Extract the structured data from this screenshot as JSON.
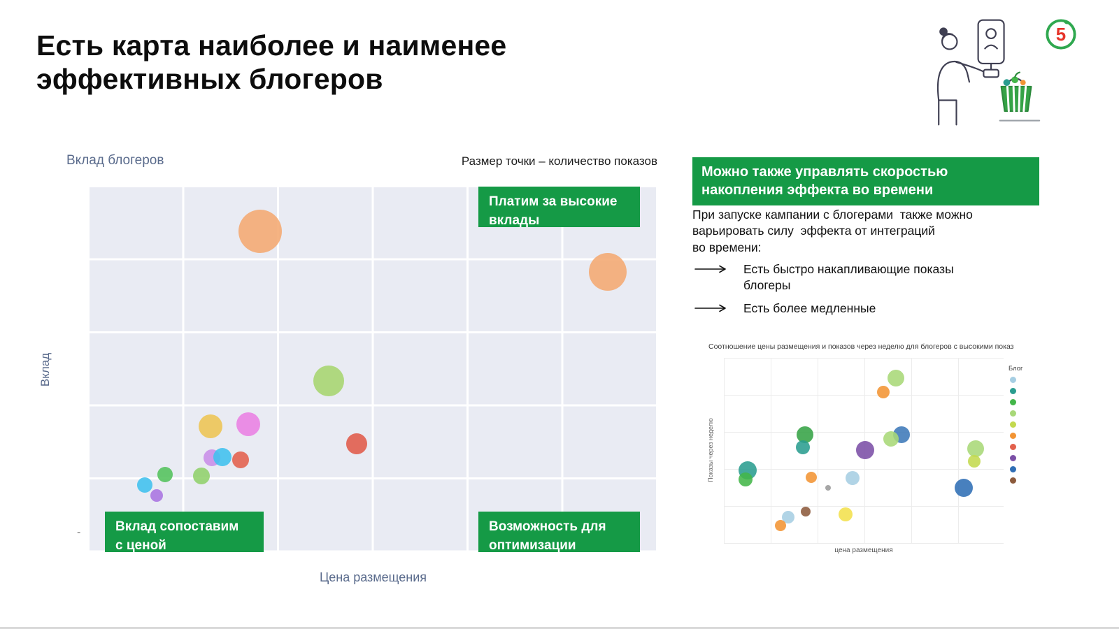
{
  "colors": {
    "accent_green": "#159A46",
    "plot_background": "#E9EBF3",
    "axis_label": "#5A6B8C",
    "logo_red": "#E63329",
    "logo_green": "#2FA84F"
  },
  "page": {
    "title": "Есть карта наиболее и наименее\nэффективных блогеров",
    "logo_text": "5"
  },
  "side_panel": {
    "header": "Можно также управлять скоростью\nнакопления эффекта во времени",
    "paragraph": "При запуске кампании с блогерами  также можно\nварьировать силу  эффекта от интеграций\nво времени:",
    "bullets": [
      "Есть быстро накапливающие показы\nблогеры",
      "Есть более медленные"
    ]
  },
  "chart_data": [
    {
      "type": "scatter",
      "title": "Вклад блогеров",
      "size_note": "Размер точки – количество показов",
      "xlabel": "Цена размещения",
      "ylabel": "Вклад",
      "ytick": "-",
      "grid": true,
      "coord_note": "x,y in percent of plot area, y from top; r = bubble radius px; axes unlabeled/qualitative",
      "annotations": {
        "top_right": "Платим за высокие\nвклады",
        "bottom_left": "Вклад сопоставим\nс ценой",
        "bottom_right": "Возможность для\nоптимизации"
      },
      "points": [
        {
          "x": 30.1,
          "y": 12.3,
          "r": 31,
          "color": "#F4A971"
        },
        {
          "x": 91.3,
          "y": 23.4,
          "r": 27,
          "color": "#F4A971"
        },
        {
          "x": 42.2,
          "y": 53.3,
          "r": 22,
          "color": "#A6D56E"
        },
        {
          "x": 21.4,
          "y": 65.7,
          "r": 17,
          "color": "#EDC452"
        },
        {
          "x": 28.0,
          "y": 65.1,
          "r": 17,
          "color": "#E980E3"
        },
        {
          "x": 47.1,
          "y": 70.5,
          "r": 15,
          "color": "#E05A49"
        },
        {
          "x": 21.6,
          "y": 74.3,
          "r": 12,
          "color": "#C88DE8"
        },
        {
          "x": 23.5,
          "y": 74.2,
          "r": 13,
          "color": "#3FC0EE"
        },
        {
          "x": 26.7,
          "y": 74.9,
          "r": 12,
          "color": "#E2604C"
        },
        {
          "x": 13.4,
          "y": 79.0,
          "r": 11,
          "color": "#52C25B"
        },
        {
          "x": 19.8,
          "y": 79.3,
          "r": 12,
          "color": "#8FD06A"
        },
        {
          "x": 9.8,
          "y": 81.8,
          "r": 11,
          "color": "#3FC0EE"
        },
        {
          "x": 11.9,
          "y": 84.7,
          "r": 9,
          "color": "#A873E0"
        }
      ]
    },
    {
      "type": "scatter",
      "title": "Соотношение цены размещения и показов через неделю для блогеров с высокими показ",
      "xlabel": "цена размещения",
      "ylabel": "Показы через неделю",
      "legend_label": "Блог",
      "grid": true,
      "coord_note": "x,y in percent of plot area, y from top; r = bubble radius px",
      "legend_colors": [
        "#A6CEE3",
        "#2A9D8F",
        "#43B649",
        "#A8D878",
        "#C3D94E",
        "#F29433",
        "#E2604C",
        "#7B4FA6",
        "#2F6EB5",
        "#8C5A3C"
      ],
      "points": [
        {
          "x": 61.4,
          "y": 11.0,
          "r": 12,
          "color": "#A8D878"
        },
        {
          "x": 57.0,
          "y": 18.5,
          "r": 9,
          "color": "#F29433"
        },
        {
          "x": 28.9,
          "y": 41.4,
          "r": 12,
          "color": "#35A346"
        },
        {
          "x": 28.2,
          "y": 48.0,
          "r": 10,
          "color": "#2A9D8F"
        },
        {
          "x": 63.4,
          "y": 41.4,
          "r": 12,
          "color": "#3E79B8"
        },
        {
          "x": 59.8,
          "y": 43.6,
          "r": 11,
          "color": "#A8D878"
        },
        {
          "x": 50.6,
          "y": 49.5,
          "r": 13,
          "color": "#7B4FA6"
        },
        {
          "x": 89.9,
          "y": 48.7,
          "r": 12,
          "color": "#A8D878"
        },
        {
          "x": 89.4,
          "y": 55.7,
          "r": 9,
          "color": "#C3D94E"
        },
        {
          "x": 8.4,
          "y": 60.4,
          "r": 13,
          "color": "#2A9D8F"
        },
        {
          "x": 7.7,
          "y": 65.6,
          "r": 10,
          "color": "#43B649"
        },
        {
          "x": 31.3,
          "y": 64.1,
          "r": 8,
          "color": "#F29433"
        },
        {
          "x": 46.0,
          "y": 64.5,
          "r": 10,
          "color": "#A6CEE3"
        },
        {
          "x": 37.3,
          "y": 70.0,
          "r": 4,
          "color": "#9A9A9A"
        },
        {
          "x": 85.8,
          "y": 70.0,
          "r": 13,
          "color": "#2F6EB5"
        },
        {
          "x": 23.1,
          "y": 85.7,
          "r": 9,
          "color": "#A6CEE3"
        },
        {
          "x": 29.2,
          "y": 82.8,
          "r": 7,
          "color": "#8C5A3C"
        },
        {
          "x": 43.6,
          "y": 84.2,
          "r": 10,
          "color": "#F2E04C"
        },
        {
          "x": 20.2,
          "y": 90.1,
          "r": 8,
          "color": "#F29433"
        }
      ]
    }
  ]
}
